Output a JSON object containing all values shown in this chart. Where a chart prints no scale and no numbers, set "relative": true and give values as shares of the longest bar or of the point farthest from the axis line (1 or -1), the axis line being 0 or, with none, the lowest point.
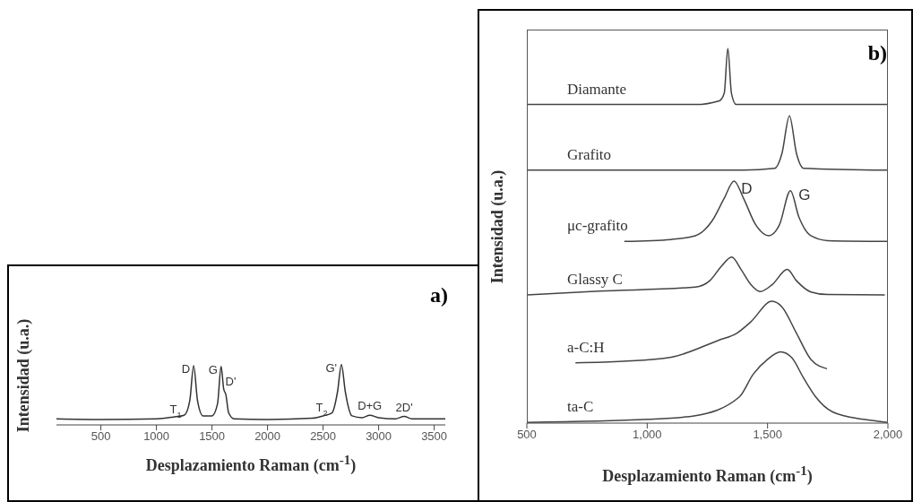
{
  "chart_data": [
    {
      "type": "line",
      "relative": true,
      "xlabel": "Desplazamiento Raman (cm$^{-1}$)",
      "ylabel": "Intensidad (u.a.)",
      "xlim": [
        100,
        3600
      ],
      "xticks": [
        500,
        1000,
        1500,
        2000,
        2500,
        3000,
        3500
      ],
      "color": "#333333",
      "x": [
        100,
        500,
        1000,
        1150,
        1250,
        1300,
        1335,
        1370,
        1420,
        1500,
        1550,
        1582,
        1605,
        1625,
        1650,
        1700,
        2000,
        2400,
        2500,
        2580,
        2630,
        2665,
        2700,
        2760,
        2850,
        2920,
        3000,
        3150,
        3230,
        3300,
        3600
      ],
      "values": [
        0.1,
        0.09,
        0.1,
        0.13,
        0.16,
        0.4,
        0.98,
        0.4,
        0.15,
        0.15,
        0.35,
        0.97,
        0.6,
        0.5,
        0.2,
        0.1,
        0.09,
        0.11,
        0.15,
        0.2,
        0.55,
        1.0,
        0.55,
        0.15,
        0.12,
        0.16,
        0.12,
        0.1,
        0.14,
        0.1,
        0.1
      ],
      "annotations": [
        "a)",
        {
          "text": "D",
          "x": 1335,
          "y": 0.98
        },
        {
          "text": "G",
          "x": 1582,
          "y": 0.97
        },
        {
          "text": "D'",
          "x": 1605,
          "y": 0.6
        },
        {
          "text": "T$_{1}$",
          "x": 1250,
          "y": 0.16
        },
        {
          "text": "T$_{2}$",
          "x": 2580,
          "y": 0.2
        },
        {
          "text": "G'",
          "x": 2665,
          "y": 1.0
        },
        {
          "text": "D+G",
          "x": 2920,
          "y": 0.16
        },
        {
          "text": "2D'",
          "x": 3230,
          "y": 0.14
        }
      ]
    },
    {
      "type": "line",
      "relative": true,
      "xlabel": "Desplazamiento Raman (cm$^{-1}$)",
      "ylabel": "Intensidad (u.a.)",
      "xlim": [
        500,
        2000
      ],
      "xticks": [
        500,
        {
          "value": 1000,
          "label": "1,000"
        },
        {
          "value": 1500,
          "label": "1,500"
        },
        {
          "value": 2000,
          "label": "2,000"
        }
      ],
      "series": [
        {
          "name": "Diamante",
          "color": "#444444",
          "x": [
            500,
            1200,
            1300,
            1320,
            1335,
            1350,
            1370,
            2000
          ],
          "values": [
            0.85,
            0.85,
            0.86,
            0.88,
            1.0,
            0.88,
            0.85,
            0.85
          ]
        },
        {
          "name": "Grafito",
          "color": "#444444",
          "x": [
            500,
            1400,
            1530,
            1560,
            1591,
            1620,
            1650,
            2000
          ],
          "values": [
            0.675,
            0.675,
            0.68,
            0.72,
            0.82,
            0.72,
            0.68,
            0.675
          ]
        },
        {
          "name": "μc-grafito",
          "color": "#444444",
          "x": [
            905,
            1100,
            1200,
            1270,
            1320,
            1361,
            1400,
            1450,
            1505,
            1550,
            1595,
            1630,
            1680,
            1750,
            2000
          ],
          "values": [
            0.485,
            0.49,
            0.5,
            0.54,
            0.6,
            0.646,
            0.6,
            0.53,
            0.5,
            0.53,
            0.62,
            0.55,
            0.5,
            0.487,
            0.485
          ]
        },
        {
          "name": "Glassy C",
          "color": "#444444",
          "x": [
            500,
            800,
            1200,
            1260,
            1310,
            1351,
            1390,
            1430,
            1470,
            1520,
            1582,
            1620,
            1680,
            1750,
            1987
          ],
          "values": [
            0.342,
            0.352,
            0.363,
            0.38,
            0.42,
            0.443,
            0.41,
            0.37,
            0.351,
            0.37,
            0.41,
            0.38,
            0.35,
            0.343,
            0.342
          ]
        },
        {
          "name": "a-C:H",
          "color": "#444444",
          "x": [
            702,
            900,
            1100,
            1300,
            1370,
            1430,
            1518,
            1560,
            1620,
            1680,
            1747
          ],
          "values": [
            0.161,
            0.165,
            0.176,
            0.222,
            0.239,
            0.27,
            0.325,
            0.31,
            0.24,
            0.17,
            0.145
          ]
        },
        {
          "name": "ta-C",
          "color": "#444444",
          "x": [
            500,
            1000,
            1200,
            1383,
            1440,
            1500,
            1554,
            1600,
            1650,
            1700,
            1770,
            1900,
            2000
          ],
          "values": [
            0.002,
            0.01,
            0.02,
            0.07,
            0.13,
            0.17,
            0.19,
            0.175,
            0.12,
            0.07,
            0.03,
            0.01,
            0.002
          ]
        }
      ],
      "annotations": [
        "b)",
        {
          "text": "D",
          "x": 1361,
          "y": 0.646
        },
        {
          "text": "G",
          "x": 1595,
          "y": 0.62
        }
      ]
    }
  ]
}
